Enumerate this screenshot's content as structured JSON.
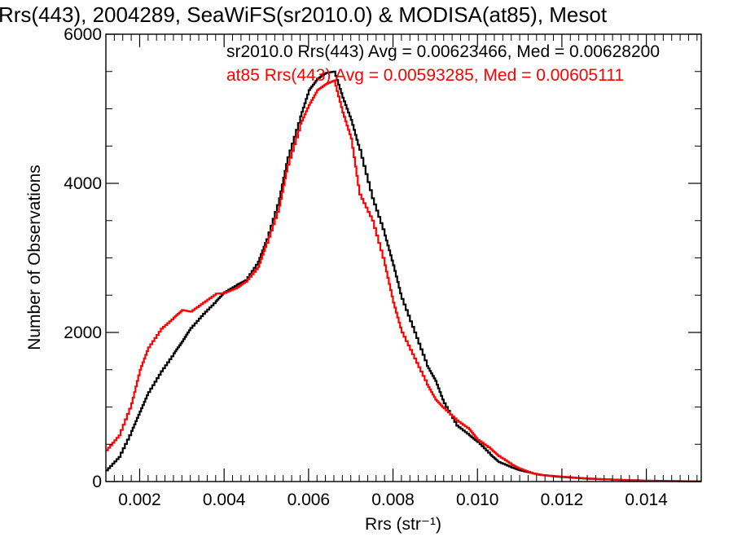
{
  "chart_data": {
    "type": "line",
    "title": "Rrs(443), 2004289, SeaWiFS(sr2010.0) & MODISA(at85), Mesot",
    "xlabel": "Rrs (str⁻¹)",
    "ylabel": "Number of Observations",
    "xlim": [
      0.0012,
      0.0153
    ],
    "ylim": [
      0,
      6000
    ],
    "x_ticks": [
      0.002,
      0.004,
      0.006,
      0.008,
      0.01,
      0.012,
      0.014
    ],
    "x_tick_labels": [
      "0.002",
      "0.004",
      "0.006",
      "0.008",
      "0.010",
      "0.012",
      "0.014"
    ],
    "y_ticks": [
      0,
      2000,
      4000,
      6000
    ],
    "y_tick_labels": [
      "0",
      "2000",
      "4000",
      "6000"
    ],
    "grid": false,
    "legend_placement": "top-right",
    "annotations": [
      {
        "text": "sr2010.0 Rrs(443) Avg = 0.00623466, Med = 0.00628200",
        "color": "#000000"
      },
      {
        "text": "at85 Rrs(443) Avg = 0.00593285, Med = 0.00605111",
        "color": "#ff0000"
      }
    ],
    "series": [
      {
        "color": "#000000",
        "points": [
          [
            0.0012,
            150
          ],
          [
            0.0015,
            330
          ],
          [
            0.0018,
            680
          ],
          [
            0.002,
            940
          ],
          [
            0.0022,
            1200
          ],
          [
            0.0025,
            1480
          ],
          [
            0.0028,
            1720
          ],
          [
            0.003,
            1880
          ],
          [
            0.0032,
            2060
          ],
          [
            0.0035,
            2250
          ],
          [
            0.0038,
            2420
          ],
          [
            0.004,
            2540
          ],
          [
            0.0043,
            2640
          ],
          [
            0.0045,
            2700
          ],
          [
            0.0048,
            2950
          ],
          [
            0.005,
            3250
          ],
          [
            0.0053,
            3800
          ],
          [
            0.0055,
            4350
          ],
          [
            0.0058,
            4900
          ],
          [
            0.006,
            5250
          ],
          [
            0.0062,
            5400
          ],
          [
            0.0064,
            5480
          ],
          [
            0.0066,
            5500
          ],
          [
            0.0068,
            5150
          ],
          [
            0.007,
            4850
          ],
          [
            0.0072,
            4450
          ],
          [
            0.0075,
            3800
          ],
          [
            0.0078,
            3300
          ],
          [
            0.008,
            2900
          ],
          [
            0.0082,
            2450
          ],
          [
            0.0085,
            2000
          ],
          [
            0.0088,
            1550
          ],
          [
            0.009,
            1350
          ],
          [
            0.0092,
            1050
          ],
          [
            0.0095,
            750
          ],
          [
            0.0098,
            620
          ],
          [
            0.01,
            530
          ],
          [
            0.0103,
            360
          ],
          [
            0.0105,
            260
          ],
          [
            0.0108,
            190
          ],
          [
            0.011,
            150
          ],
          [
            0.0113,
            110
          ],
          [
            0.0115,
            90
          ],
          [
            0.0118,
            70
          ],
          [
            0.012,
            60
          ],
          [
            0.0125,
            40
          ],
          [
            0.013,
            30
          ],
          [
            0.0135,
            20
          ],
          [
            0.014,
            12
          ],
          [
            0.0145,
            8
          ],
          [
            0.015,
            4
          ],
          [
            0.0153,
            2
          ]
        ]
      },
      {
        "color": "#ff0000",
        "points": [
          [
            0.0012,
            420
          ],
          [
            0.0015,
            620
          ],
          [
            0.0018,
            1050
          ],
          [
            0.002,
            1500
          ],
          [
            0.0022,
            1800
          ],
          [
            0.0025,
            2050
          ],
          [
            0.0028,
            2200
          ],
          [
            0.003,
            2300
          ],
          [
            0.0032,
            2280
          ],
          [
            0.0035,
            2400
          ],
          [
            0.0038,
            2520
          ],
          [
            0.004,
            2530
          ],
          [
            0.0043,
            2600
          ],
          [
            0.0045,
            2680
          ],
          [
            0.0048,
            2880
          ],
          [
            0.005,
            3200
          ],
          [
            0.0053,
            3700
          ],
          [
            0.0055,
            4250
          ],
          [
            0.0058,
            4800
          ],
          [
            0.006,
            5050
          ],
          [
            0.0062,
            5250
          ],
          [
            0.0064,
            5330
          ],
          [
            0.0066,
            5380
          ],
          [
            0.0068,
            4950
          ],
          [
            0.007,
            4600
          ],
          [
            0.0072,
            3850
          ],
          [
            0.0075,
            3500
          ],
          [
            0.0078,
            2900
          ],
          [
            0.008,
            2400
          ],
          [
            0.0082,
            2000
          ],
          [
            0.0085,
            1650
          ],
          [
            0.0088,
            1300
          ],
          [
            0.009,
            1100
          ],
          [
            0.0092,
            980
          ],
          [
            0.0095,
            820
          ],
          [
            0.0098,
            700
          ],
          [
            0.01,
            560
          ],
          [
            0.0103,
            440
          ],
          [
            0.0105,
            340
          ],
          [
            0.0108,
            230
          ],
          [
            0.011,
            170
          ],
          [
            0.0113,
            110
          ],
          [
            0.0115,
            85
          ],
          [
            0.0118,
            75
          ],
          [
            0.012,
            65
          ],
          [
            0.0125,
            45
          ],
          [
            0.013,
            30
          ],
          [
            0.0135,
            18
          ],
          [
            0.014,
            10
          ],
          [
            0.0145,
            6
          ],
          [
            0.015,
            3
          ],
          [
            0.0153,
            2
          ]
        ]
      }
    ]
  }
}
